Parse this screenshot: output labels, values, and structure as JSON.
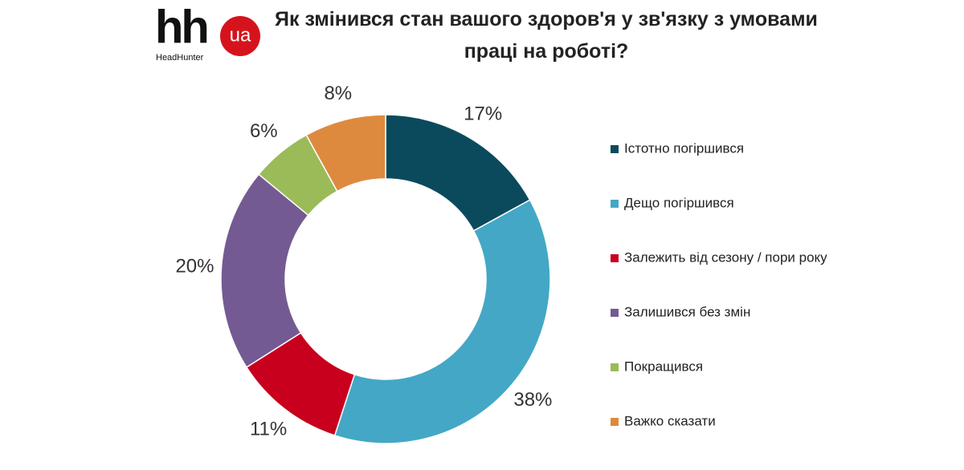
{
  "logo": {
    "brand": "hh",
    "badge": "ua",
    "name": "HeadHunter"
  },
  "chart_data": {
    "type": "donut",
    "title": "Як змінився стан вашого здоров'я у зв'язку з умовами праці на роботі?",
    "categories": [
      "Істотно погіршився",
      "Дещо погіршився",
      "Залежить від сезону / пори року",
      "Залишився без змін",
      "Покращився",
      "Важко сказати"
    ],
    "values": [
      17,
      38,
      11,
      20,
      6,
      8
    ],
    "value_labels": [
      "17%",
      "38%",
      "11%",
      "20%",
      "6%",
      "8%"
    ],
    "colors": [
      "#0b4a5c",
      "#44a7c6",
      "#c8001e",
      "#745a92",
      "#9bbb59",
      "#de8a3e"
    ],
    "legend": "right"
  }
}
